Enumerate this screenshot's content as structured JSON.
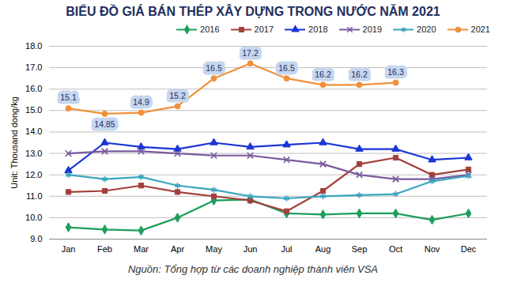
{
  "chart_data": {
    "type": "line",
    "title": "BIỂU ĐỒ GIÁ BÁN THÉP XÂY DỰNG TRONG NƯỚC NĂM 2021",
    "y_label": "Unit: Thousand dong/kg",
    "caption": "Nguồn: Tổng hợp từ các doanh nghiệp thành viên VSA",
    "categories": [
      "Jan",
      "Feb",
      "Mar",
      "Apr",
      "May",
      "Jun",
      "Jul",
      "Aug",
      "Sep",
      "Oct",
      "Nov",
      "Dec"
    ],
    "ylim": [
      9,
      18
    ],
    "yticks": [
      {
        "value": 9,
        "label": "9.0"
      },
      {
        "value": 10,
        "label": "10.0"
      },
      {
        "value": 11,
        "label": "11.0"
      },
      {
        "value": 12,
        "label": "12.0"
      },
      {
        "value": 13,
        "label": "13.0"
      },
      {
        "value": 14,
        "label": "14.0"
      },
      {
        "value": 15,
        "label": "15.0"
      },
      {
        "value": 16,
        "label": "16.0"
      },
      {
        "value": 17,
        "label": "17.0"
      },
      {
        "value": 18,
        "label": "18.0"
      }
    ],
    "grid": true,
    "legend": "top",
    "series": [
      {
        "name": "2016",
        "color": "#1e9e5c",
        "marker": "diamond",
        "values": [
          9.55,
          9.45,
          9.4,
          10.0,
          10.8,
          10.85,
          10.2,
          10.15,
          10.2,
          10.2,
          9.9,
          10.2
        ]
      },
      {
        "name": "2017",
        "color": "#a3403c",
        "marker": "square",
        "values": [
          11.2,
          11.25,
          11.5,
          11.2,
          11.0,
          10.8,
          10.3,
          11.25,
          12.5,
          12.8,
          12.0,
          12.25
        ]
      },
      {
        "name": "2018",
        "color": "#1a35d6",
        "marker": "triangle",
        "values": [
          12.2,
          13.5,
          13.3,
          13.2,
          13.5,
          13.3,
          13.4,
          13.5,
          13.2,
          13.2,
          12.7,
          12.8
        ]
      },
      {
        "name": "2019",
        "color": "#7a5a9e",
        "marker": "times",
        "values": [
          13.0,
          13.1,
          13.1,
          13.0,
          12.9,
          12.9,
          12.7,
          12.5,
          12.0,
          11.8,
          11.8,
          12.0
        ]
      },
      {
        "name": "2020",
        "color": "#3aa6bf",
        "marker": "asterisk",
        "values": [
          12.0,
          11.8,
          11.9,
          11.5,
          11.3,
          11.0,
          10.9,
          11.0,
          11.05,
          11.1,
          11.7,
          11.95
        ]
      },
      {
        "name": "2021",
        "color": "#f0913a",
        "marker": "circle",
        "data_labels": true,
        "values": [
          15.1,
          14.85,
          14.9,
          15.2,
          16.5,
          17.2,
          16.5,
          16.2,
          16.2,
          16.3,
          null,
          null
        ]
      }
    ]
  }
}
